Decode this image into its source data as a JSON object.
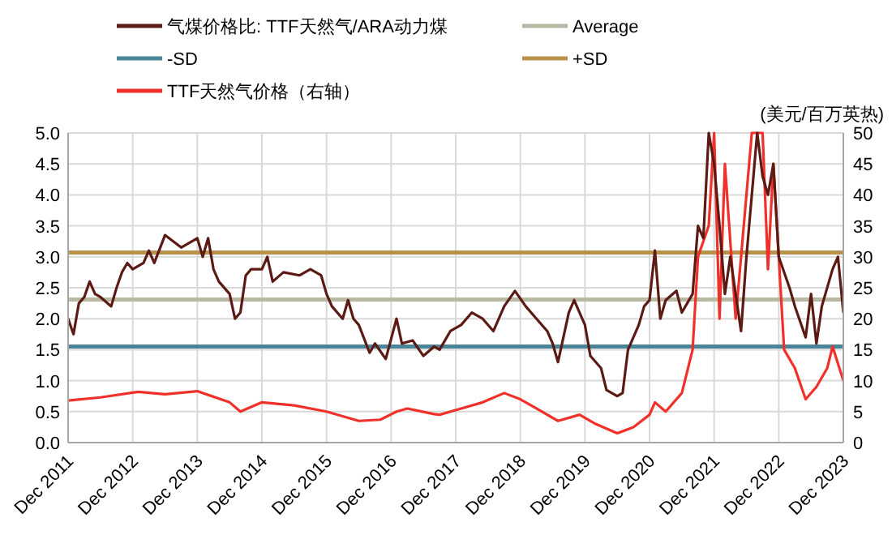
{
  "chart_data": {
    "type": "line",
    "y2label": "(美元/百万英热)",
    "legend": "top",
    "grid": true,
    "line_style": "solid",
    "marker": "none",
    "xlim": [
      "2011-12",
      "2023-12"
    ],
    "xticks": [
      {
        "value": "2011-12",
        "label": "Dec 2011"
      },
      {
        "value": "2012-12",
        "label": "Dec 2012"
      },
      {
        "value": "2013-12",
        "label": "Dec 2013"
      },
      {
        "value": "2014-12",
        "label": "Dec 2014"
      },
      {
        "value": "2015-12",
        "label": "Dec 2015"
      },
      {
        "value": "2016-12",
        "label": "Dec 2016"
      },
      {
        "value": "2017-12",
        "label": "Dec 2017"
      },
      {
        "value": "2018-12",
        "label": "Dec 2018"
      },
      {
        "value": "2019-12",
        "label": "Dec 2019"
      },
      {
        "value": "2020-12",
        "label": "Dec 2020"
      },
      {
        "value": "2021-12",
        "label": "Dec 2021"
      },
      {
        "value": "2022-12",
        "label": "Dec 2022"
      },
      {
        "value": "2023-12",
        "label": "Dec 2023"
      }
    ],
    "ylim": [
      0,
      5
    ],
    "yticks": [
      {
        "value": 0,
        "label": "0.0"
      },
      {
        "value": 0.5,
        "label": "0.5"
      },
      {
        "value": 1,
        "label": "1.0"
      },
      {
        "value": 1.5,
        "label": "1.5"
      },
      {
        "value": 2,
        "label": "2.0"
      },
      {
        "value": 2.5,
        "label": "2.5"
      },
      {
        "value": 3,
        "label": "3.0"
      },
      {
        "value": 3.5,
        "label": "3.5"
      },
      {
        "value": 4,
        "label": "4.0"
      },
      {
        "value": 4.5,
        "label": "4.5"
      },
      {
        "value": 5,
        "label": "5.0"
      }
    ],
    "y2lim": [
      0,
      50
    ],
    "y2ticks": [
      0,
      5,
      10,
      15,
      20,
      25,
      30,
      35,
      40,
      45,
      50
    ],
    "ref_lines": [
      {
        "axis": "y",
        "value": 2.31,
        "label": "Average",
        "color": "#b9b9a3"
      },
      {
        "axis": "y",
        "value": 1.55,
        "label": "-SD",
        "color": "#4a8499"
      },
      {
        "axis": "y",
        "value": 3.07,
        "label": "+SD",
        "color": "#b8924a"
      }
    ],
    "series": [
      {
        "name": "气煤价格比: TTF天然气/ARA动力煤",
        "color": "#5c1a14",
        "x": [
          "2011-12",
          "2012-01",
          "2012-02",
          "2012-03",
          "2012-04",
          "2012-05",
          "2012-06",
          "2012-08",
          "2012-09",
          "2012-10",
          "2012-11",
          "2012-12",
          "2013-02",
          "2013-03",
          "2013-04",
          "2013-06",
          "2013-09",
          "2013-12",
          "2014-01",
          "2014-02",
          "2014-03",
          "2014-04",
          "2014-06",
          "2014-07",
          "2014-08",
          "2014-09",
          "2014-10",
          "2014-12",
          "2015-01",
          "2015-02",
          "2015-04",
          "2015-07",
          "2015-09",
          "2015-11",
          "2015-12",
          "2016-01",
          "2016-03",
          "2016-04",
          "2016-05",
          "2016-06",
          "2016-08",
          "2016-09",
          "2016-11",
          "2017-01",
          "2017-02",
          "2017-04",
          "2017-06",
          "2017-08",
          "2017-09",
          "2017-11",
          "2018-01",
          "2018-03",
          "2018-05",
          "2018-07",
          "2018-09",
          "2018-11",
          "2019-01",
          "2019-03",
          "2019-05",
          "2019-06",
          "2019-07",
          "2019-09",
          "2019-10",
          "2019-12",
          "2020-01",
          "2020-03",
          "2020-04",
          "2020-06",
          "2020-07",
          "2020-08",
          "2020-10",
          "2020-11",
          "2020-12",
          "2021-01",
          "2021-02",
          "2021-03",
          "2021-05",
          "2021-06",
          "2021-08",
          "2021-09",
          "2021-10",
          "2021-11",
          "2021-12",
          "2022-01",
          "2022-02",
          "2022-03",
          "2022-05",
          "2022-06",
          "2022-08",
          "2022-09",
          "2022-10",
          "2022-11",
          "2022-12",
          "2023-02",
          "2023-03",
          "2023-05",
          "2023-06",
          "2023-07",
          "2023-08",
          "2023-10",
          "2023-11",
          "2023-12"
        ],
        "values": [
          2.0,
          1.75,
          2.25,
          2.35,
          2.6,
          2.4,
          2.35,
          2.2,
          2.5,
          2.75,
          2.9,
          2.8,
          2.9,
          3.1,
          2.9,
          3.35,
          3.15,
          3.3,
          3.0,
          3.3,
          2.8,
          2.6,
          2.4,
          2.0,
          2.1,
          2.7,
          2.8,
          2.8,
          3.0,
          2.6,
          2.75,
          2.7,
          2.8,
          2.7,
          2.4,
          2.2,
          2.0,
          2.3,
          2.0,
          1.9,
          1.45,
          1.6,
          1.35,
          2.0,
          1.6,
          1.65,
          1.4,
          1.55,
          1.5,
          1.8,
          1.9,
          2.1,
          2.0,
          1.8,
          2.2,
          2.45,
          2.2,
          2.0,
          1.8,
          1.6,
          1.3,
          2.1,
          2.3,
          1.9,
          1.4,
          1.2,
          0.85,
          0.75,
          0.8,
          1.5,
          1.9,
          2.2,
          2.3,
          3.1,
          2.0,
          2.3,
          2.45,
          2.1,
          2.4,
          3.5,
          3.3,
          5.0,
          4.5,
          3.5,
          2.4,
          3.0,
          1.8,
          3.0,
          5.0,
          4.3,
          4.0,
          4.5,
          3.0,
          2.5,
          2.2,
          1.7,
          2.4,
          1.6,
          2.2,
          2.8,
          3.0,
          2.1
        ]
      },
      {
        "name": "TTF天然气价格（右轴）",
        "color": "#f0302a",
        "axis": "y2",
        "x": [
          "2011-12",
          "2012-06",
          "2013-01",
          "2013-06",
          "2013-12",
          "2014-06",
          "2014-08",
          "2014-12",
          "2015-06",
          "2015-12",
          "2016-06",
          "2016-10",
          "2017-01",
          "2017-03",
          "2017-08",
          "2017-09",
          "2018-01",
          "2018-05",
          "2018-09",
          "2018-12",
          "2019-03",
          "2019-07",
          "2019-11",
          "2020-02",
          "2020-06",
          "2020-09",
          "2020-12",
          "2021-01",
          "2021-03",
          "2021-06",
          "2021-08",
          "2021-09",
          "2021-11",
          "2021-12",
          "2022-01",
          "2022-02",
          "2022-04",
          "2022-05",
          "2022-07",
          "2022-09",
          "2022-10",
          "2022-11",
          "2023-01",
          "2023-03",
          "2023-05",
          "2023-07",
          "2023-09",
          "2023-10",
          "2023-12"
        ],
        "values": [
          6.8,
          7.3,
          8.2,
          7.8,
          8.3,
          6.5,
          5.0,
          6.5,
          6.0,
          5.0,
          3.5,
          3.7,
          5.0,
          5.5,
          4.6,
          4.5,
          5.5,
          6.5,
          8.0,
          7.0,
          5.5,
          3.5,
          4.5,
          3.0,
          1.5,
          2.5,
          4.5,
          6.5,
          5.0,
          8.0,
          15,
          30,
          35,
          50,
          20,
          45,
          20,
          30,
          50,
          50,
          28,
          45,
          15,
          12,
          7.0,
          9.0,
          12,
          15.5,
          10
        ]
      }
    ]
  }
}
